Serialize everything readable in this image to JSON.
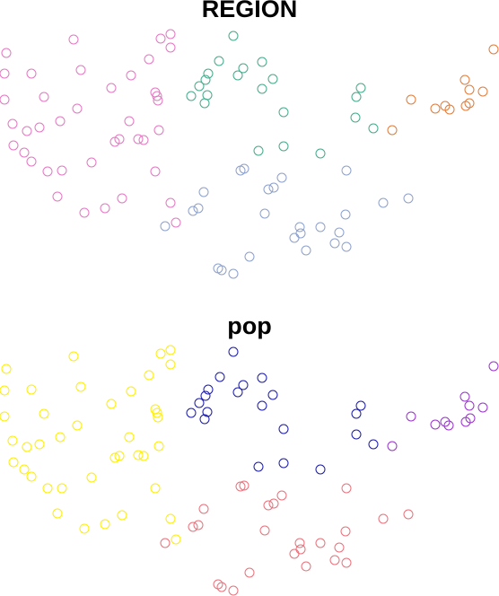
{
  "chart_data": [
    {
      "type": "scatter",
      "title": "REGION",
      "xlim": [
        0,
        556
      ],
      "ylim": [
        0,
        330
      ],
      "y_inverted": true,
      "series": [
        {
          "color": "#e377c2",
          "points": [
            [
              7,
              59
            ],
            [
              82,
              44
            ],
            [
              179,
              43
            ],
            [
              190,
              38
            ],
            [
              190,
              53
            ],
            [
              5,
              82
            ],
            [
              35,
              82
            ],
            [
              90,
              78
            ],
            [
              166,
              66
            ],
            [
              146,
              84
            ],
            [
              124,
              98
            ],
            [
              5,
              111
            ],
            [
              49,
              108
            ],
            [
              86,
              121
            ],
            [
              173,
              103
            ],
            [
              175,
              107
            ],
            [
              176,
              112
            ],
            [
              14,
              138
            ],
            [
              30,
              146
            ],
            [
              44,
              142
            ],
            [
              67,
              135
            ],
            [
              144,
              135
            ],
            [
              133,
              155
            ],
            [
              128,
              158
            ],
            [
              154,
              155
            ],
            [
              160,
              156
            ],
            [
              177,
              145
            ],
            [
              15,
              162
            ],
            [
              27,
              170
            ],
            [
              35,
              180
            ],
            [
              53,
              191
            ],
            [
              69,
              190
            ],
            [
              102,
              181
            ],
            [
              173,
              191
            ],
            [
              64,
              219
            ],
            [
              94,
              237
            ],
            [
              117,
              232
            ],
            [
              136,
              221
            ],
            [
              190,
              226
            ],
            [
              196,
              248
            ]
          ]
        },
        {
          "color": "#43aa8b",
          "points": [
            [
              260,
              40
            ],
            [
              244,
              68
            ],
            [
              271,
              76
            ],
            [
              292,
              69
            ],
            [
              232,
              82
            ],
            [
              265,
              84
            ],
            [
              304,
              88
            ],
            [
              229,
              89
            ],
            [
              222,
              96
            ],
            [
              213,
              107
            ],
            [
              231,
              106
            ],
            [
              292,
              99
            ],
            [
              228,
              115
            ],
            [
              316,
              125
            ],
            [
              288,
              168
            ],
            [
              316,
              163
            ],
            [
              357,
              171
            ],
            [
              402,
              98
            ],
            [
              397,
              108
            ],
            [
              396,
              131
            ],
            [
              416,
              143
            ]
          ]
        },
        {
          "color": "#e07b39",
          "points": [
            [
              550,
              55
            ],
            [
              518,
              89
            ],
            [
              523,
              100
            ],
            [
              538,
              102
            ],
            [
              458,
              111
            ],
            [
              485,
              121
            ],
            [
              496,
              118
            ],
            [
              501,
              122
            ],
            [
              523,
              115
            ],
            [
              519,
              118
            ],
            [
              437,
              145
            ]
          ]
        },
        {
          "color": "#8da0cb",
          "points": [
            [
              268,
              190
            ],
            [
              272,
              188
            ],
            [
              314,
              198
            ],
            [
              299,
              211
            ],
            [
              305,
              209
            ],
            [
              386,
              190
            ],
            [
              227,
              214
            ],
            [
              215,
              235
            ],
            [
              221,
              232
            ],
            [
              184,
              252
            ],
            [
              295,
              238
            ],
            [
              427,
              226
            ],
            [
              455,
              221
            ],
            [
              385,
              239
            ],
            [
              334,
              253
            ],
            [
              357,
              253
            ],
            [
              335,
              260
            ],
            [
              328,
              265
            ],
            [
              378,
              259
            ],
            [
              373,
              271
            ],
            [
              386,
              275
            ],
            [
              341,
              279
            ],
            [
              278,
              286
            ],
            [
              243,
              299
            ],
            [
              247,
              301
            ],
            [
              260,
              305
            ]
          ]
        }
      ]
    },
    {
      "type": "scatter",
      "title": "pop",
      "xlim": [
        0,
        556
      ],
      "ylim": [
        0,
        330
      ],
      "y_inverted": true,
      "series": [
        {
          "color": "#ffee00",
          "points": [
            [
              7,
              411
            ],
            [
              82,
              397
            ],
            [
              179,
              394
            ],
            [
              190,
              390
            ],
            [
              190,
              406
            ],
            [
              5,
              435
            ],
            [
              35,
              434
            ],
            [
              90,
              431
            ],
            [
              166,
              418
            ],
            [
              146,
              436
            ],
            [
              124,
              450
            ],
            [
              5,
              464
            ],
            [
              49,
              461
            ],
            [
              86,
              474
            ],
            [
              173,
              456
            ],
            [
              175,
              460
            ],
            [
              176,
              465
            ],
            [
              14,
              491
            ],
            [
              30,
              498
            ],
            [
              44,
              495
            ],
            [
              67,
              487
            ],
            [
              144,
              487
            ],
            [
              133,
              508
            ],
            [
              128,
              510
            ],
            [
              154,
              507
            ],
            [
              160,
              508
            ],
            [
              177,
              497
            ],
            [
              15,
              515
            ],
            [
              27,
              523
            ],
            [
              35,
              531
            ],
            [
              53,
              544
            ],
            [
              69,
              544
            ],
            [
              102,
              532
            ],
            [
              173,
              544
            ],
            [
              64,
              572
            ],
            [
              94,
              589
            ],
            [
              117,
              584
            ],
            [
              136,
              574
            ],
            [
              190,
              578
            ],
            [
              196,
              601
            ]
          ]
        },
        {
          "color": "#1a1aa8",
          "points": [
            [
              260,
              392
            ],
            [
              245,
              420
            ],
            [
              271,
              429
            ],
            [
              292,
              421
            ],
            [
              232,
              434
            ],
            [
              265,
              437
            ],
            [
              304,
              440
            ],
            [
              229,
              441
            ],
            [
              222,
              449
            ],
            [
              213,
              460
            ],
            [
              231,
              459
            ],
            [
              292,
              452
            ],
            [
              228,
              467
            ],
            [
              316,
              478
            ],
            [
              288,
              520
            ],
            [
              316,
              516
            ],
            [
              357,
              523
            ],
            [
              402,
              452
            ],
            [
              397,
              461
            ],
            [
              397,
              484
            ],
            [
              416,
              495
            ]
          ]
        },
        {
          "color": "#9932cc",
          "points": [
            [
              550,
              408
            ],
            [
              518,
              442
            ],
            [
              523,
              452
            ],
            [
              538,
              454
            ],
            [
              458,
              464
            ],
            [
              485,
              473
            ],
            [
              496,
              470
            ],
            [
              500,
              474
            ],
            [
              524,
              466
            ],
            [
              519,
              470
            ],
            [
              437,
              497
            ]
          ]
        },
        {
          "color": "#e8707a",
          "points": [
            [
              268,
              542
            ],
            [
              272,
              541
            ],
            [
              314,
              552
            ],
            [
              299,
              563
            ],
            [
              305,
              561
            ],
            [
              386,
              544
            ],
            [
              227,
              567
            ],
            [
              215,
              587
            ],
            [
              221,
              585
            ],
            [
              184,
              605
            ],
            [
              295,
              591
            ],
            [
              427,
              578
            ],
            [
              455,
              573
            ],
            [
              385,
              592
            ],
            [
              334,
              605
            ],
            [
              357,
              605
            ],
            [
              335,
              612
            ],
            [
              328,
              617
            ],
            [
              378,
              610
            ],
            [
              373,
              624
            ],
            [
              386,
              627
            ],
            [
              341,
              631
            ],
            [
              278,
              638
            ],
            [
              243,
              651
            ],
            [
              247,
              654
            ],
            [
              260,
              658
            ]
          ]
        }
      ]
    }
  ]
}
